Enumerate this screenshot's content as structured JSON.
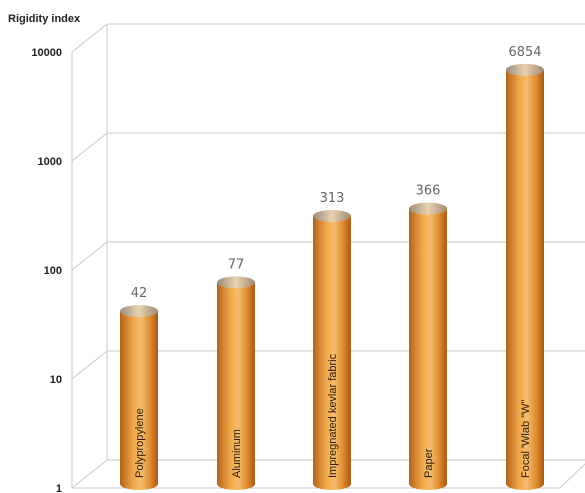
{
  "chart_data": {
    "type": "bar",
    "title": "",
    "ylabel": "Rigidity index",
    "xlabel": "",
    "yscale": "log",
    "ylim": [
      1,
      10000
    ],
    "yticks": [
      "1",
      "10",
      "100",
      "1000",
      "10000"
    ],
    "categories": [
      "Polypropylene",
      "Aluminum",
      "Impregnated kevlar fabric",
      "Paper",
      "Focal 'Wlab \"W\""
    ],
    "values": [
      42,
      77,
      313,
      366,
      6854
    ],
    "value_labels": [
      "42",
      "77",
      "313",
      "366",
      "6854"
    ],
    "grid": true,
    "bar_style": "3d-cylinder",
    "colors": {
      "bar": "#e8922f",
      "bar_dark": "#b9651a",
      "bar_light": "#f6c07a",
      "grid": "#c8c8c8"
    }
  }
}
